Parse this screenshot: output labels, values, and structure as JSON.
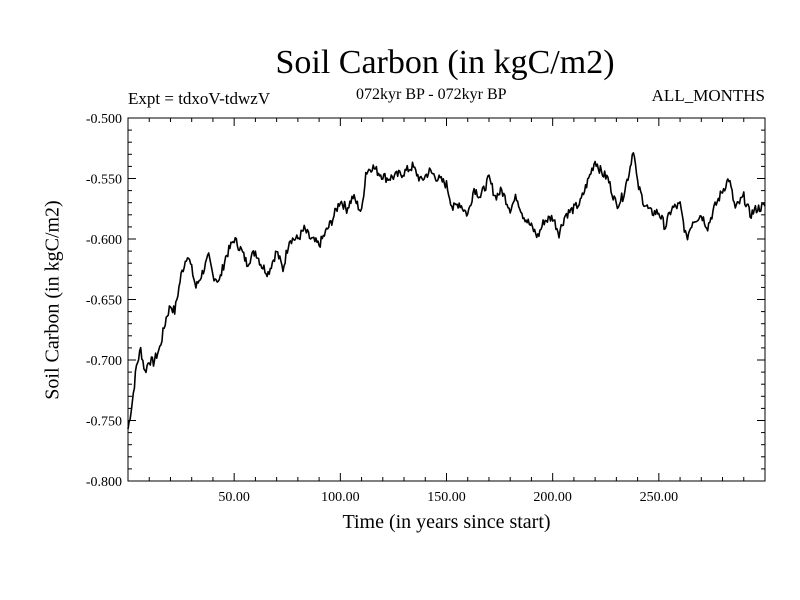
{
  "header": {
    "title": "Soil Carbon (in kgC/m2)",
    "expt": "Expt = tdxoV-tdwzV",
    "period": "072kyr BP - 072kyr BP",
    "months": "ALL_MONTHS"
  },
  "chart_data": {
    "type": "line",
    "title": "Soil Carbon (in kgC/m2)",
    "xlabel": "Time (in years since start)",
    "ylabel": "Soil Carbon (in kgC/m2)",
    "xlim": [
      0,
      300
    ],
    "ylim": [
      -0.8,
      -0.5
    ],
    "x_ticks": [
      50,
      100,
      150,
      200,
      250
    ],
    "x_tick_labels": [
      "50.00",
      "100.00",
      "150.00",
      "200.00",
      "250.00"
    ],
    "y_ticks": [
      -0.5,
      -0.55,
      -0.6,
      -0.65,
      -0.7,
      -0.75,
      -0.8
    ],
    "y_tick_labels": [
      "-0.500",
      "-0.550",
      "-0.600",
      "-0.650",
      "-0.700",
      "-0.750",
      "-0.800"
    ],
    "grid": false,
    "line_color": "#000000",
    "series": [
      {
        "x": [
          0,
          2,
          4,
          6,
          8,
          10,
          12,
          15,
          18,
          20,
          22,
          25,
          28,
          30,
          32,
          35,
          38,
          40,
          43,
          46,
          50,
          53,
          56,
          60,
          63,
          66,
          70,
          73,
          76,
          80,
          83,
          86,
          90,
          93,
          96,
          100,
          103,
          106,
          110,
          112,
          115,
          118,
          122,
          126,
          130,
          134,
          138,
          142,
          146,
          150,
          153,
          156,
          160,
          163,
          166,
          170,
          173,
          176,
          180,
          183,
          186,
          190,
          193,
          196,
          200,
          203,
          206,
          210,
          213,
          216,
          220,
          223,
          226,
          230,
          233,
          236,
          238,
          240,
          243,
          246,
          250,
          253,
          256,
          260,
          263,
          266,
          270,
          273,
          276,
          280,
          283,
          286,
          290,
          293,
          296,
          300
        ],
        "y": [
          -0.757,
          -0.735,
          -0.705,
          -0.691,
          -0.71,
          -0.7,
          -0.702,
          -0.69,
          -0.665,
          -0.655,
          -0.66,
          -0.63,
          -0.612,
          -0.625,
          -0.64,
          -0.628,
          -0.615,
          -0.63,
          -0.635,
          -0.615,
          -0.6,
          -0.608,
          -0.62,
          -0.61,
          -0.622,
          -0.628,
          -0.61,
          -0.625,
          -0.6,
          -0.6,
          -0.592,
          -0.6,
          -0.605,
          -0.595,
          -0.585,
          -0.568,
          -0.575,
          -0.565,
          -0.578,
          -0.545,
          -0.54,
          -0.545,
          -0.55,
          -0.548,
          -0.545,
          -0.54,
          -0.552,
          -0.544,
          -0.55,
          -0.555,
          -0.575,
          -0.57,
          -0.58,
          -0.558,
          -0.565,
          -0.55,
          -0.565,
          -0.56,
          -0.575,
          -0.565,
          -0.58,
          -0.59,
          -0.598,
          -0.585,
          -0.582,
          -0.595,
          -0.58,
          -0.575,
          -0.57,
          -0.555,
          -0.535,
          -0.545,
          -0.55,
          -0.572,
          -0.565,
          -0.545,
          -0.525,
          -0.555,
          -0.57,
          -0.578,
          -0.578,
          -0.59,
          -0.575,
          -0.572,
          -0.6,
          -0.585,
          -0.58,
          -0.59,
          -0.575,
          -0.56,
          -0.55,
          -0.575,
          -0.565,
          -0.58,
          -0.575,
          -0.573
        ]
      }
    ]
  }
}
